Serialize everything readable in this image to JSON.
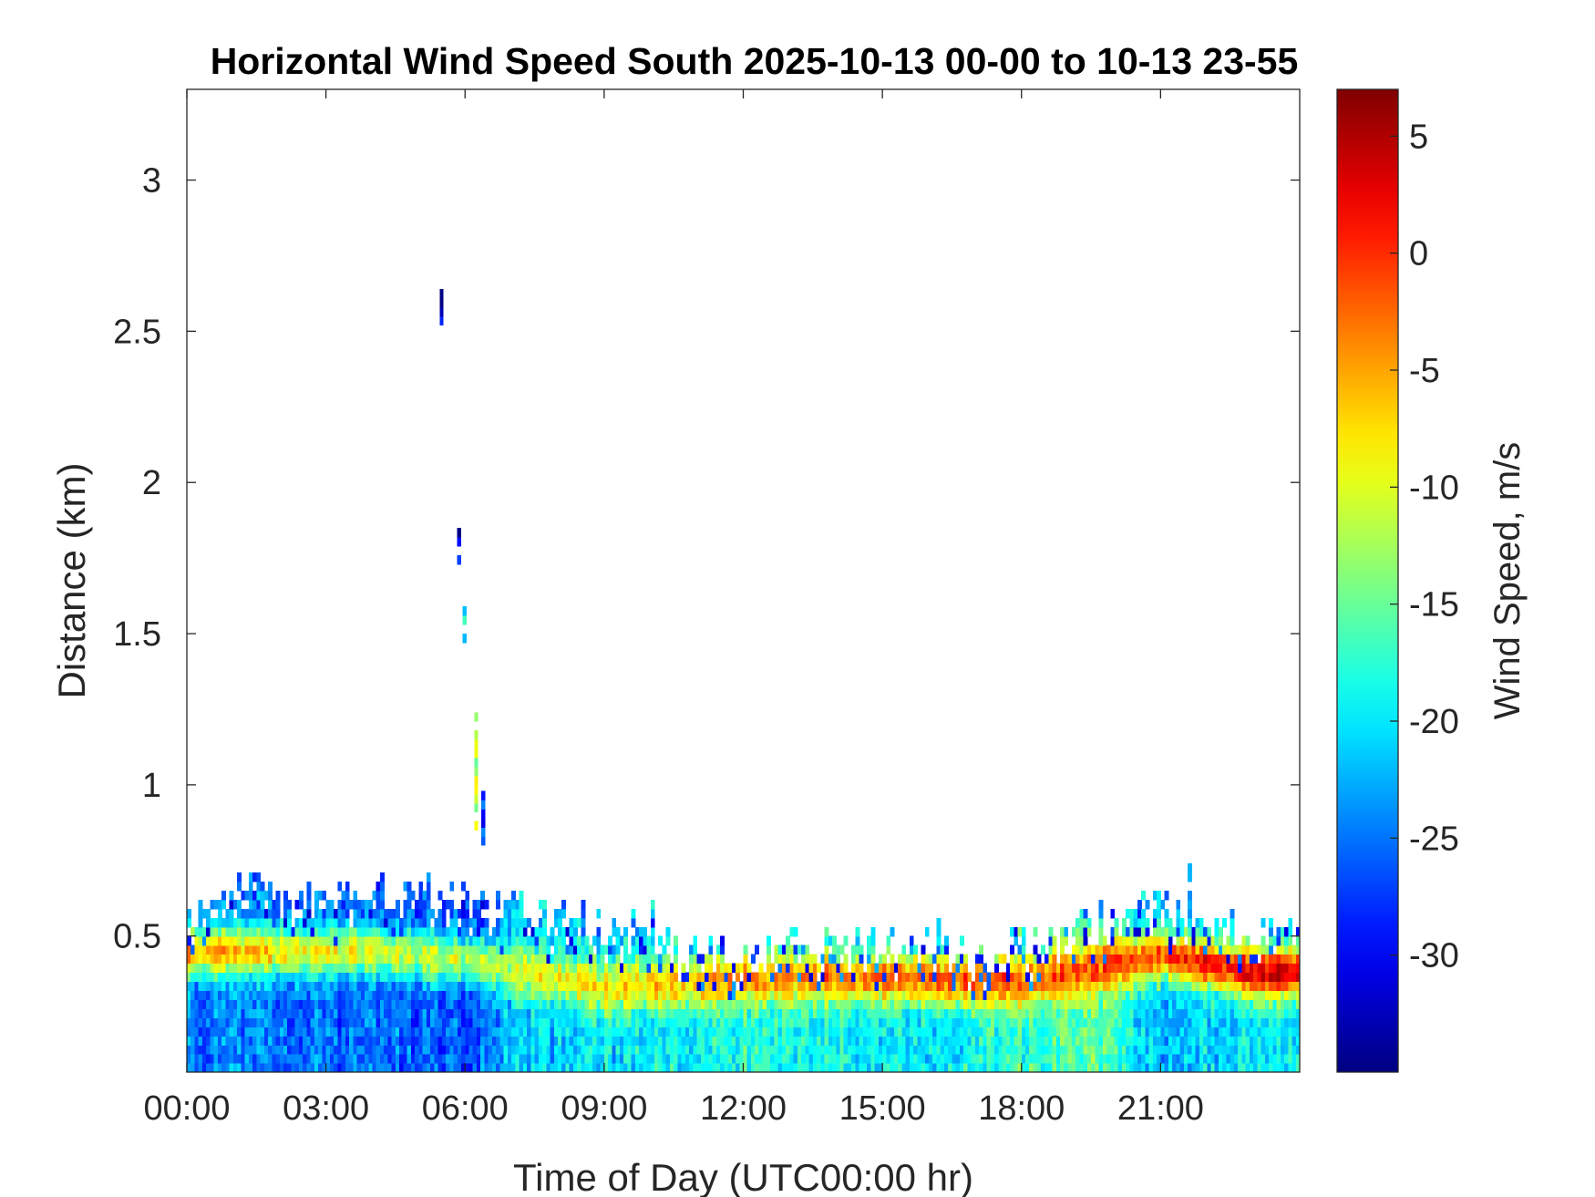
{
  "chart_data": {
    "type": "heatmap",
    "title": "Horizontal Wind Speed South 2025-10-13 00-00 to 10-13 23-55",
    "xlabel": "Time of Day (UTC00:00 hr)",
    "ylabel": "Distance (km)",
    "colorbar_label": "Wind Speed, m/s",
    "x_ticks": [
      "00:00",
      "03:00",
      "06:00",
      "09:00",
      "12:00",
      "15:00",
      "18:00",
      "21:00"
    ],
    "x_tick_hours": [
      0,
      3,
      6,
      9,
      12,
      15,
      18,
      21
    ],
    "xlim_hours": [
      0,
      24
    ],
    "y_ticks": [
      "0.5",
      "1",
      "1.5",
      "2",
      "2.5",
      "3"
    ],
    "y_tick_values": [
      0.5,
      1,
      1.5,
      2,
      2.5,
      3
    ],
    "ylim": [
      0.05,
      3.3
    ],
    "colorbar_ticks": [
      "5",
      "0",
      "-5",
      "-10",
      "-15",
      "-20",
      "-25",
      "-30"
    ],
    "colorbar_tick_values": [
      5,
      0,
      -5,
      -10,
      -15,
      -20,
      -25,
      -30
    ],
    "clim": [
      -35,
      7
    ],
    "colormap": "jet",
    "grid": false,
    "time_resolution_min": 5,
    "range_resolution_km": 0.03,
    "boundary_layer_top_km": [
      {
        "hour": 0.0,
        "top": 0.56
      },
      {
        "hour": 1.0,
        "top": 0.66
      },
      {
        "hour": 2.0,
        "top": 0.64
      },
      {
        "hour": 3.0,
        "top": 0.63
      },
      {
        "hour": 4.0,
        "top": 0.66
      },
      {
        "hour": 5.0,
        "top": 0.64
      },
      {
        "hour": 6.0,
        "top": 0.62
      },
      {
        "hour": 7.0,
        "top": 0.58
      },
      {
        "hour": 8.0,
        "top": 0.55
      },
      {
        "hour": 9.0,
        "top": 0.54
      },
      {
        "hour": 10.0,
        "top": 0.48
      },
      {
        "hour": 11.0,
        "top": 0.44
      },
      {
        "hour": 12.0,
        "top": 0.43
      },
      {
        "hour": 13.0,
        "top": 0.47
      },
      {
        "hour": 15.0,
        "top": 0.46
      },
      {
        "hour": 17.0,
        "top": 0.43
      },
      {
        "hour": 18.0,
        "top": 0.46
      },
      {
        "hour": 19.0,
        "top": 0.5
      },
      {
        "hour": 20.0,
        "top": 0.56
      },
      {
        "hour": 21.0,
        "top": 0.6
      },
      {
        "hour": 22.0,
        "top": 0.52
      },
      {
        "hour": 24.0,
        "top": 0.52
      }
    ],
    "max_speed_layer": [
      {
        "hour": 0.0,
        "center_km": 0.45,
        "value": -5
      },
      {
        "hour": 4.0,
        "center_km": 0.45,
        "value": -10
      },
      {
        "hour": 6.0,
        "center_km": 0.42,
        "value": -12
      },
      {
        "hour": 9.0,
        "center_km": 0.33,
        "value": -8
      },
      {
        "hour": 12.0,
        "center_km": 0.36,
        "value": -5
      },
      {
        "hour": 15.0,
        "center_km": 0.36,
        "value": -2
      },
      {
        "hour": 18.0,
        "center_km": 0.35,
        "value": -2
      },
      {
        "hour": 21.0,
        "center_km": 0.44,
        "value": -1
      },
      {
        "hour": 23.0,
        "center_km": 0.38,
        "value": 3
      }
    ],
    "surface_layer": [
      {
        "hour": 0.0,
        "value": -25
      },
      {
        "hour": 4.0,
        "value": -25
      },
      {
        "hour": 6.0,
        "value": -27
      },
      {
        "hour": 7.0,
        "value": -22
      },
      {
        "hour": 10.0,
        "value": -20
      },
      {
        "hour": 12.0,
        "value": -18
      },
      {
        "hour": 16.0,
        "value": -20
      },
      {
        "hour": 19.5,
        "value": -15
      },
      {
        "hour": 21.0,
        "value": -22
      },
      {
        "hour": 24.0,
        "value": -19
      }
    ],
    "isolated_returns": [
      {
        "hour": 5.45,
        "distance_km": [
          2.52,
          2.63
        ],
        "value": -32
      },
      {
        "hour": 5.83,
        "distance_km": [
          1.7,
          1.85
        ],
        "value": -31
      },
      {
        "hour": 5.95,
        "distance_km": [
          1.38,
          1.58
        ],
        "value": -20
      },
      {
        "hour": 6.2,
        "distance_km": [
          0.85,
          1.25
        ],
        "value": -12
      },
      {
        "hour": 6.35,
        "distance_km": [
          0.8,
          1.0
        ],
        "value": -28
      }
    ]
  }
}
